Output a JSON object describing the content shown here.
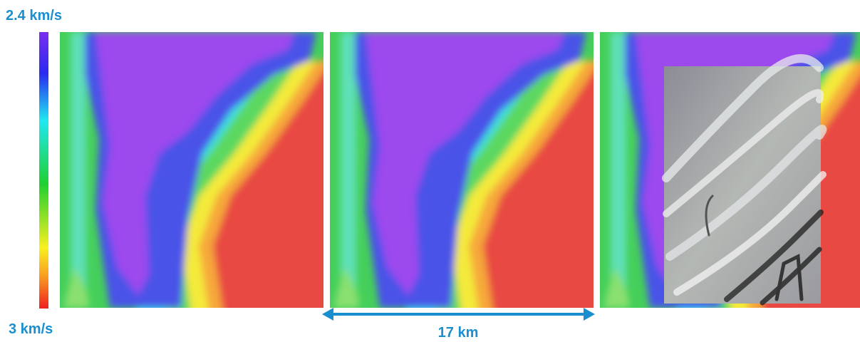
{
  "colorbar": {
    "top_label": "2.4 km/s",
    "bottom_label": "3 km/s"
  },
  "scale": {
    "label": "17 km"
  }
}
